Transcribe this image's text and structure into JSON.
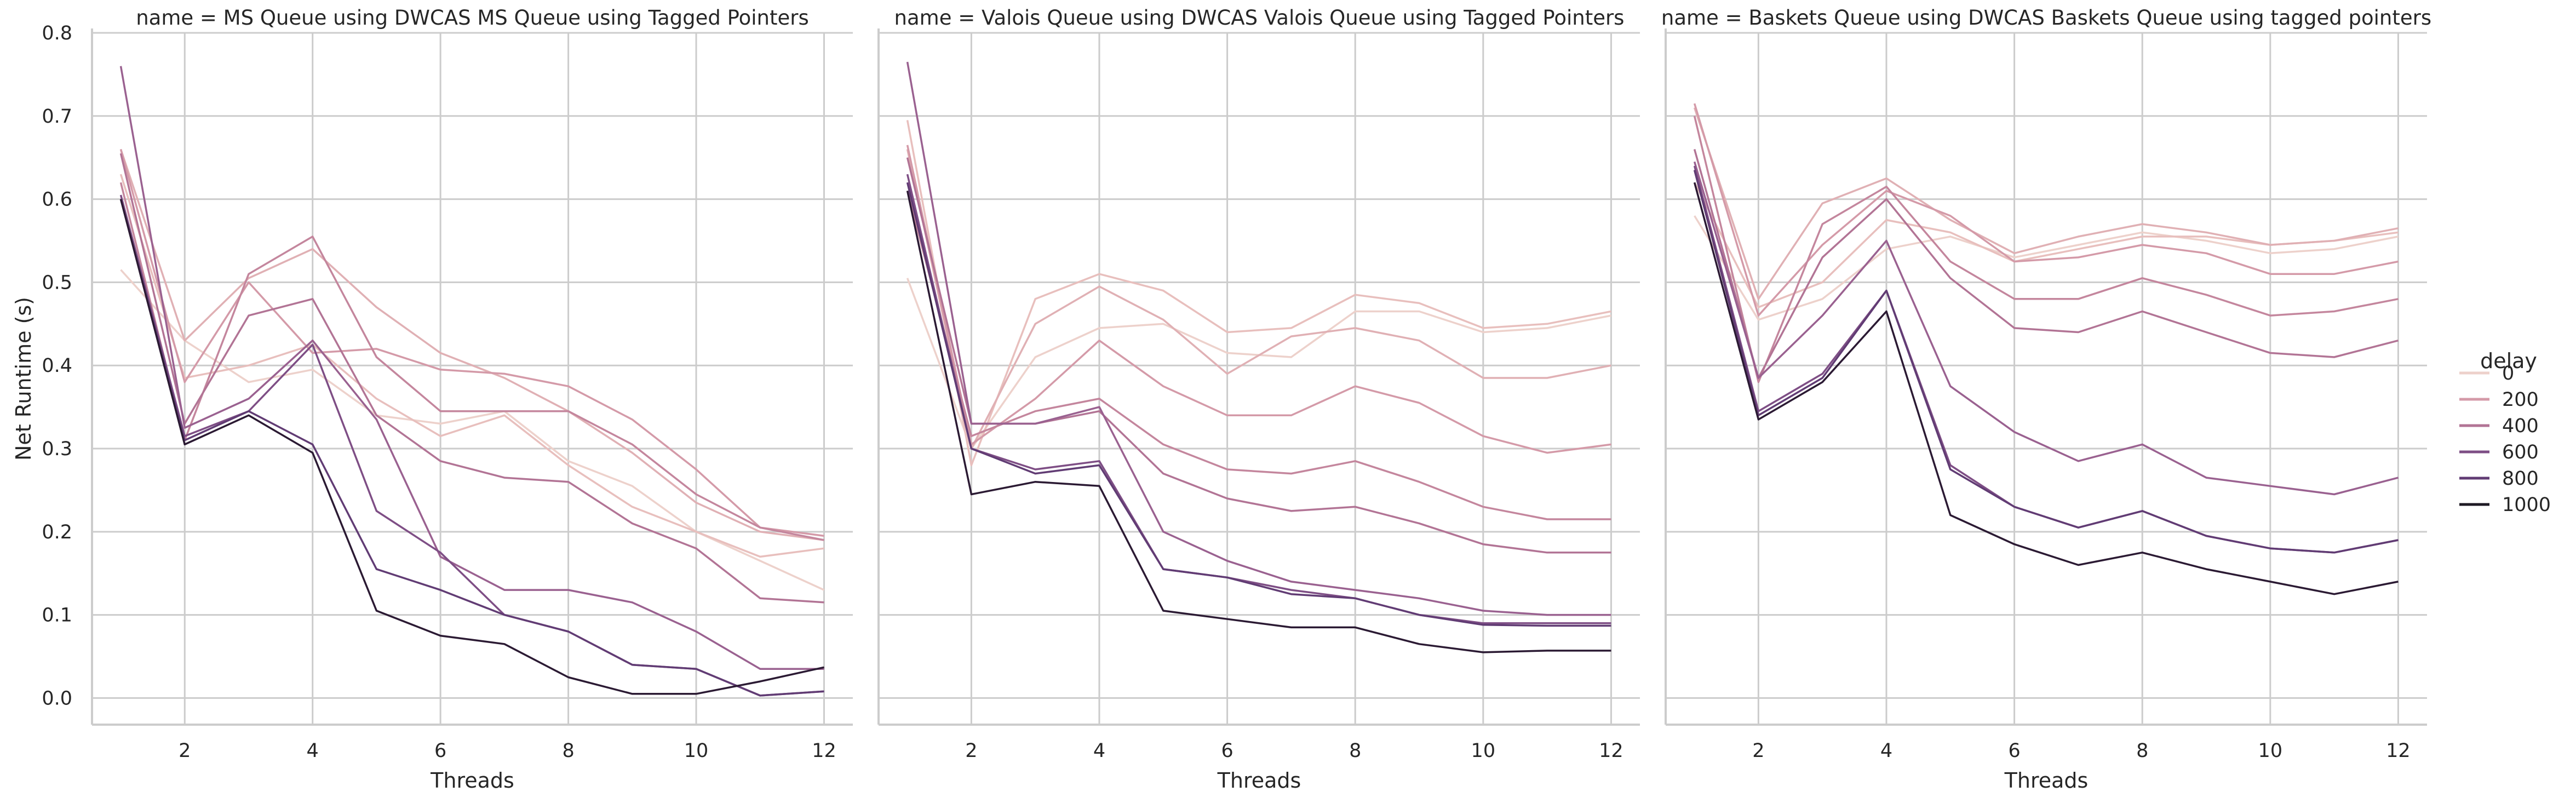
{
  "chart_data": [
    {
      "type": "line",
      "title": "name = MS Queue using DWCAS MS Queue using Tagged Pointers",
      "xlabel": "Threads",
      "ylabel": "Net Runtime (s)",
      "x": [
        1,
        2,
        3,
        4,
        5,
        6,
        7,
        8,
        9,
        10,
        11,
        12
      ],
      "xticks": [
        "2",
        "4",
        "6",
        "8",
        "10",
        "12"
      ],
      "yticks": [
        "0.0",
        "0.1",
        "0.2",
        "0.3",
        "0.4",
        "0.5",
        "0.6",
        "0.7",
        "0.8"
      ],
      "xlim": [
        0.55,
        12.45
      ],
      "ylim": [
        -0.032,
        0.8
      ],
      "grid": true,
      "series": [
        {
          "name": "0",
          "color": "#edd1cb",
          "values": [
            0.515,
            0.43,
            0.38,
            0.395,
            0.34,
            0.33,
            0.345,
            0.285,
            0.255,
            0.2,
            0.165,
            0.13
          ]
        },
        {
          "name": "",
          "color": "#e8bfbd",
          "values": [
            0.63,
            0.385,
            0.4,
            0.425,
            0.36,
            0.315,
            0.34,
            0.28,
            0.23,
            0.2,
            0.17,
            0.18
          ]
        },
        {
          "name": "200",
          "color": "#e0b0b4",
          "values": [
            0.66,
            0.43,
            0.505,
            0.54,
            0.47,
            0.415,
            0.385,
            0.345,
            0.295,
            0.235,
            0.2,
            0.19
          ]
        },
        {
          "name": "",
          "color": "#d49aa8",
          "values": [
            0.66,
            0.38,
            0.5,
            0.415,
            0.42,
            0.395,
            0.39,
            0.375,
            0.335,
            0.275,
            0.205,
            0.195
          ]
        },
        {
          "name": "400",
          "color": "#c4869d",
          "values": [
            0.62,
            0.31,
            0.51,
            0.555,
            0.41,
            0.345,
            0.345,
            0.345,
            0.305,
            0.245,
            0.205,
            0.19
          ]
        },
        {
          "name": "",
          "color": "#b27495",
          "values": [
            0.655,
            0.33,
            0.46,
            0.48,
            0.34,
            0.285,
            0.265,
            0.26,
            0.21,
            0.18,
            0.12,
            0.115
          ]
        },
        {
          "name": "600",
          "color": "#9a6190",
          "values": [
            0.76,
            0.325,
            0.36,
            0.43,
            0.335,
            0.17,
            0.13,
            0.13,
            0.115,
            0.08,
            0.035,
            0.035
          ]
        },
        {
          "name": "",
          "color": "#7e4e85",
          "values": [
            0.605,
            0.315,
            0.345,
            0.425,
            0.225,
            0.175,
            0.1,
            0.08,
            0.04,
            0.035,
            0.003,
            0.008
          ]
        },
        {
          "name": "800",
          "color": "#613c74",
          "values": [
            0.6,
            0.31,
            0.345,
            0.305,
            0.155,
            0.13,
            0.1,
            0.08,
            0.04,
            0.035,
            0.003,
            0.008
          ]
        },
        {
          "name": "1000",
          "color": "#2b1a33",
          "values": [
            0.6,
            0.305,
            0.34,
            0.295,
            0.105,
            0.075,
            0.065,
            0.025,
            0.005,
            0.005,
            0.02,
            0.037
          ]
        }
      ]
    },
    {
      "type": "line",
      "title": "name = Valois Queue using DWCAS Valois Queue using Tagged Pointers",
      "xlabel": "Threads",
      "ylabel": "",
      "x": [
        1,
        2,
        3,
        4,
        5,
        6,
        7,
        8,
        9,
        10,
        11,
        12
      ],
      "xticks": [
        "2",
        "4",
        "6",
        "8",
        "10",
        "12"
      ],
      "yticks": [],
      "xlim": [
        0.55,
        12.45
      ],
      "ylim": [
        -0.032,
        0.8
      ],
      "grid": true,
      "series": [
        {
          "name": "0",
          "color": "#edd1cb",
          "values": [
            0.505,
            0.3,
            0.41,
            0.445,
            0.45,
            0.415,
            0.41,
            0.465,
            0.465,
            0.44,
            0.445,
            0.46
          ]
        },
        {
          "name": "",
          "color": "#e8bfbd",
          "values": [
            0.695,
            0.28,
            0.48,
            0.51,
            0.49,
            0.44,
            0.445,
            0.485,
            0.475,
            0.445,
            0.45,
            0.465
          ]
        },
        {
          "name": "200",
          "color": "#e0b0b4",
          "values": [
            0.66,
            0.3,
            0.45,
            0.495,
            0.455,
            0.39,
            0.435,
            0.445,
            0.43,
            0.385,
            0.385,
            0.4
          ]
        },
        {
          "name": "",
          "color": "#d49aa8",
          "values": [
            0.665,
            0.305,
            0.36,
            0.43,
            0.375,
            0.34,
            0.34,
            0.375,
            0.355,
            0.315,
            0.295,
            0.305
          ]
        },
        {
          "name": "400",
          "color": "#c4869d",
          "values": [
            0.61,
            0.315,
            0.345,
            0.36,
            0.305,
            0.275,
            0.27,
            0.285,
            0.26,
            0.23,
            0.215,
            0.215
          ]
        },
        {
          "name": "",
          "color": "#b27495",
          "values": [
            0.65,
            0.33,
            0.33,
            0.345,
            0.27,
            0.24,
            0.225,
            0.23,
            0.21,
            0.185,
            0.175,
            0.175
          ]
        },
        {
          "name": "600",
          "color": "#9a6190",
          "values": [
            0.765,
            0.33,
            0.33,
            0.35,
            0.2,
            0.165,
            0.14,
            0.13,
            0.12,
            0.105,
            0.1,
            0.1
          ]
        },
        {
          "name": "",
          "color": "#7e4e85",
          "values": [
            0.63,
            0.3,
            0.275,
            0.285,
            0.155,
            0.145,
            0.13,
            0.12,
            0.1,
            0.09,
            0.09,
            0.09
          ]
        },
        {
          "name": "800",
          "color": "#613c74",
          "values": [
            0.62,
            0.3,
            0.27,
            0.28,
            0.155,
            0.145,
            0.125,
            0.12,
            0.1,
            0.088,
            0.087,
            0.087
          ]
        },
        {
          "name": "1000",
          "color": "#2b1a33",
          "values": [
            0.61,
            0.245,
            0.26,
            0.255,
            0.105,
            0.095,
            0.085,
            0.085,
            0.065,
            0.055,
            0.057,
            0.057
          ]
        }
      ]
    },
    {
      "type": "line",
      "title": "name = Baskets Queue using DWCAS Baskets Queue using tagged pointers",
      "xlabel": "Threads",
      "ylabel": "",
      "x": [
        1,
        2,
        3,
        4,
        5,
        6,
        7,
        8,
        9,
        10,
        11,
        12
      ],
      "xticks": [
        "2",
        "4",
        "6",
        "8",
        "10",
        "12"
      ],
      "yticks": [],
      "xlim": [
        0.55,
        12.45
      ],
      "ylim": [
        -0.032,
        0.8
      ],
      "grid": true,
      "series": [
        {
          "name": "0",
          "color": "#edd1cb",
          "values": [
            0.58,
            0.455,
            0.48,
            0.54,
            0.555,
            0.53,
            0.545,
            0.56,
            0.55,
            0.535,
            0.54,
            0.555
          ]
        },
        {
          "name": "",
          "color": "#e8bfbd",
          "values": [
            0.62,
            0.47,
            0.5,
            0.575,
            0.56,
            0.525,
            0.54,
            0.555,
            0.555,
            0.545,
            0.55,
            0.56
          ]
        },
        {
          "name": "200",
          "color": "#e0b0b4",
          "values": [
            0.71,
            0.48,
            0.595,
            0.625,
            0.575,
            0.535,
            0.555,
            0.57,
            0.56,
            0.545,
            0.55,
            0.565
          ]
        },
        {
          "name": "",
          "color": "#d49aa8",
          "values": [
            0.715,
            0.46,
            0.545,
            0.61,
            0.58,
            0.525,
            0.53,
            0.545,
            0.535,
            0.51,
            0.51,
            0.525
          ]
        },
        {
          "name": "400",
          "color": "#c4869d",
          "values": [
            0.7,
            0.38,
            0.57,
            0.615,
            0.525,
            0.48,
            0.48,
            0.505,
            0.485,
            0.46,
            0.465,
            0.48
          ]
        },
        {
          "name": "",
          "color": "#b27495",
          "values": [
            0.66,
            0.385,
            0.53,
            0.6,
            0.505,
            0.445,
            0.44,
            0.465,
            0.44,
            0.415,
            0.41,
            0.43
          ]
        },
        {
          "name": "600",
          "color": "#9a6190",
          "values": [
            0.645,
            0.385,
            0.46,
            0.55,
            0.375,
            0.32,
            0.285,
            0.305,
            0.265,
            0.255,
            0.245,
            0.265
          ]
        },
        {
          "name": "",
          "color": "#7e4e85",
          "values": [
            0.64,
            0.345,
            0.39,
            0.49,
            0.28,
            0.23,
            0.205,
            0.225,
            0.195,
            0.18,
            0.175,
            0.19
          ]
        },
        {
          "name": "800",
          "color": "#613c74",
          "values": [
            0.635,
            0.34,
            0.385,
            0.49,
            0.275,
            0.23,
            0.205,
            0.225,
            0.195,
            0.18,
            0.175,
            0.19
          ]
        },
        {
          "name": "1000",
          "color": "#2b1a33",
          "values": [
            0.62,
            0.335,
            0.38,
            0.465,
            0.22,
            0.185,
            0.16,
            0.175,
            0.155,
            0.14,
            0.125,
            0.14
          ]
        }
      ]
    }
  ],
  "legend": {
    "title": "delay",
    "placement": "right",
    "entries": [
      {
        "label": "0",
        "color": "#edd1cb"
      },
      {
        "label": "200",
        "color": "#d49aa8"
      },
      {
        "label": "400",
        "color": "#b27495"
      },
      {
        "label": "600",
        "color": "#7e4e85"
      },
      {
        "label": "800",
        "color": "#613c74"
      },
      {
        "label": "1000",
        "color": "#1e1a24"
      }
    ]
  }
}
